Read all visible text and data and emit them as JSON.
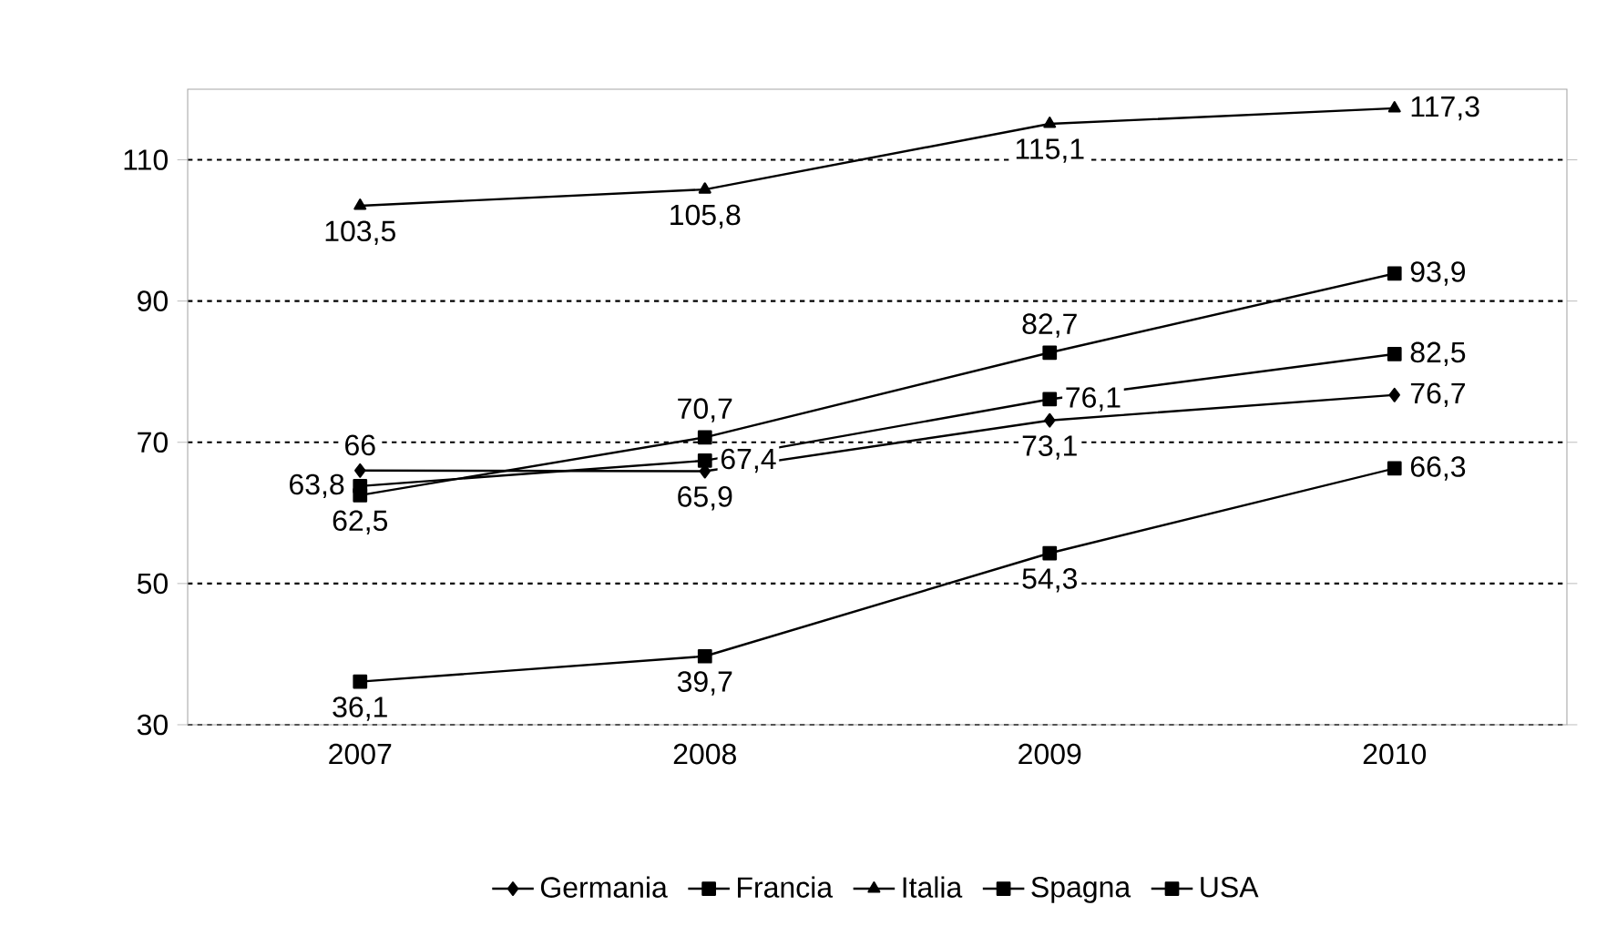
{
  "chart_data": {
    "type": "line",
    "categories": [
      "2007",
      "2008",
      "2009",
      "2010"
    ],
    "series": [
      {
        "name": "Germania",
        "color": "#000000",
        "marker": "diamond",
        "values": [
          66,
          65.9,
          73.1,
          76.7
        ],
        "value_labels": [
          "66",
          "65,9",
          "73,1",
          "76,7"
        ]
      },
      {
        "name": "Francia",
        "color": "#000000",
        "marker": "square",
        "values": [
          63.8,
          67.4,
          76.1,
          82.5
        ],
        "value_labels": [
          "63,8",
          "67,4",
          "76,1",
          "82,5"
        ]
      },
      {
        "name": "Italia",
        "color": "#000000",
        "marker": "triangle",
        "values": [
          103.5,
          105.8,
          115.1,
          117.3
        ],
        "value_labels": [
          "103,5",
          "105,8",
          "115,1",
          "117,3"
        ]
      },
      {
        "name": "Spagna",
        "color": "#000000",
        "marker": "square",
        "values": [
          36.1,
          39.7,
          54.3,
          66.3
        ],
        "value_labels": [
          "36,1",
          "39,7",
          "54,3",
          "66,3"
        ]
      },
      {
        "name": "USA",
        "color": "#000000",
        "marker": "square",
        "values": [
          62.5,
          70.7,
          82.7,
          93.9
        ],
        "value_labels": [
          "62,5",
          "70,7",
          "82,7",
          "93,9"
        ]
      }
    ],
    "ylim": [
      30,
      120
    ],
    "yticks": [
      30,
      50,
      70,
      90,
      110
    ],
    "grid": "y",
    "legend": "bottom",
    "line_style": "solid"
  }
}
